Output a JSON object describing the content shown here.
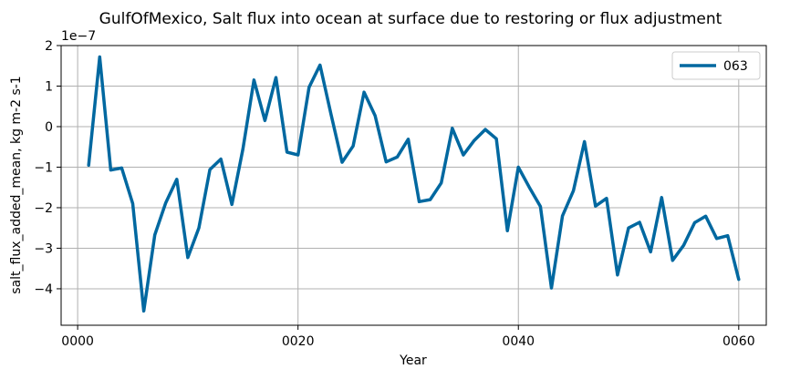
{
  "chart_data": {
    "type": "line",
    "title": "GulfOfMexico, Salt flux into ocean at surface due to restoring or flux adjustment",
    "xlabel": "Year",
    "ylabel": "salt_flux_added_mean, kg m-2 s-1",
    "offset_label": "1e−7",
    "xlim": [
      -1.5,
      62.5
    ],
    "ylim": [
      -4.9,
      2.0
    ],
    "x_ticks": [
      0,
      20,
      40,
      60
    ],
    "x_tick_labels": [
      "0000",
      "0020",
      "0040",
      "0060"
    ],
    "y_ticks": [
      -4,
      -3,
      -2,
      -1,
      0,
      1,
      2
    ],
    "y_tick_labels": [
      "−4",
      "−3",
      "−2",
      "−1",
      "0",
      "1",
      "2"
    ],
    "grid": true,
    "legend_position": "top-right",
    "color": "#0068a0",
    "series": [
      {
        "name": "063",
        "x": [
          1,
          2,
          3,
          4,
          5,
          6,
          7,
          8,
          9,
          10,
          11,
          12,
          13,
          14,
          15,
          16,
          17,
          18,
          19,
          20,
          21,
          22,
          23,
          24,
          25,
          26,
          27,
          28,
          29,
          30,
          31,
          32,
          33,
          34,
          35,
          36,
          37,
          38,
          39,
          40,
          41,
          42,
          43,
          44,
          45,
          46,
          47,
          48,
          49,
          50,
          51,
          52,
          53,
          54,
          55,
          56,
          57,
          58,
          59,
          60
        ],
        "values": [
          -0.95,
          1.72,
          -1.07,
          -1.02,
          -1.9,
          -4.55,
          -2.67,
          -1.88,
          -1.3,
          -3.23,
          -2.5,
          -1.06,
          -0.8,
          -1.92,
          -0.55,
          1.15,
          0.15,
          1.21,
          -0.63,
          -0.7,
          0.97,
          1.52,
          0.3,
          -0.88,
          -0.48,
          0.85,
          0.27,
          -0.87,
          -0.75,
          -0.31,
          -1.85,
          -1.8,
          -1.39,
          -0.04,
          -0.7,
          -0.34,
          -0.07,
          -0.3,
          -2.57,
          -1.0,
          -1.5,
          -1.97,
          -3.98,
          -2.2,
          -1.58,
          -0.37,
          -1.96,
          -1.77,
          -3.66,
          -2.5,
          -2.36,
          -3.09,
          -1.75,
          -3.3,
          -2.93,
          -2.37,
          -2.21,
          -2.76,
          -2.69,
          -3.77
        ]
      }
    ]
  }
}
